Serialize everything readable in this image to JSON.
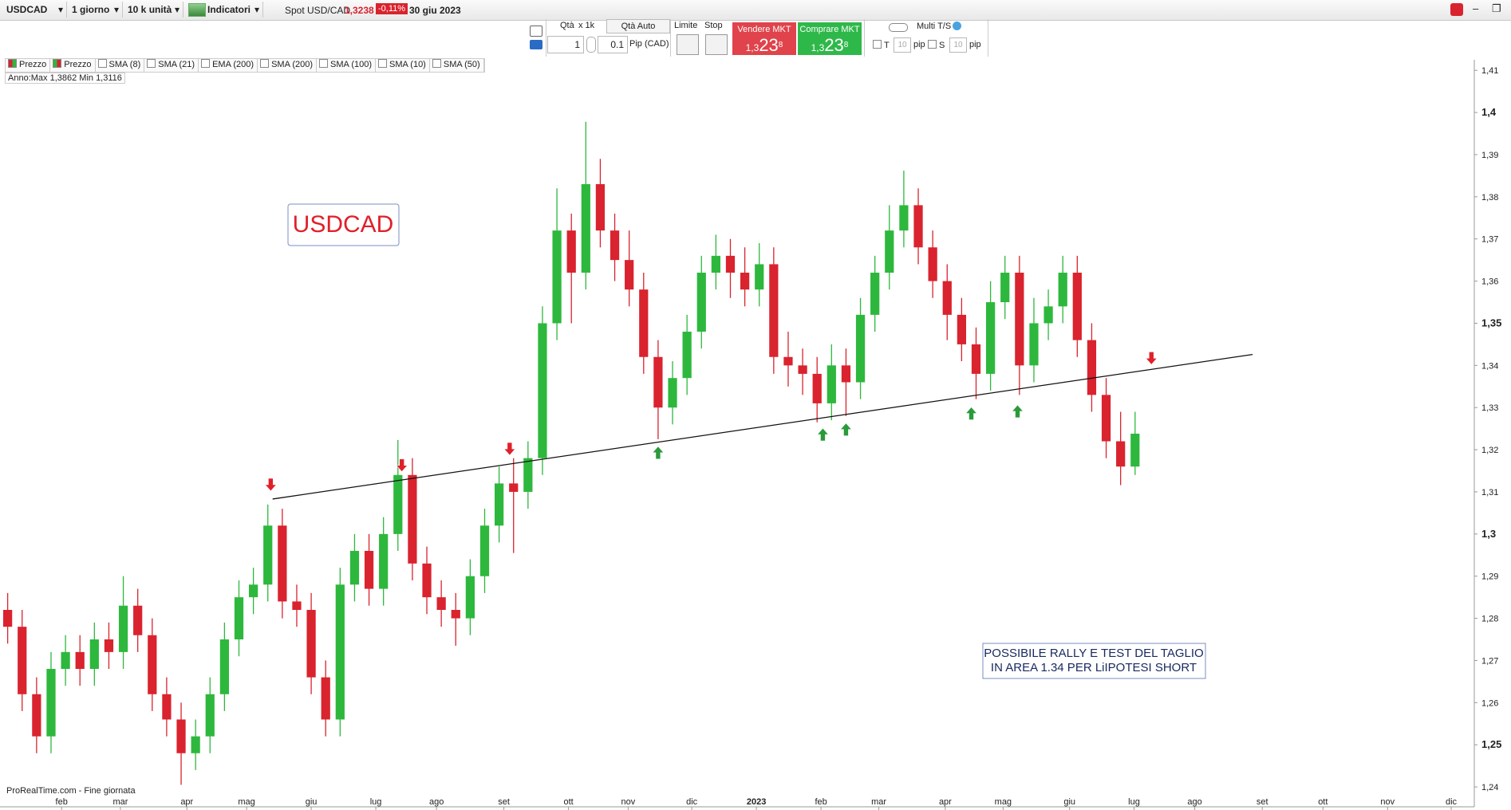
{
  "toolbar": {
    "symbol": "USDCAD",
    "period": "1 giorno",
    "units": "10 k unità",
    "indicators": "Indicatori",
    "instrument": "Spot USD/CAD",
    "price": "1,3238",
    "change": "-0,11%",
    "date": "30 giu 2023"
  },
  "order_panel": {
    "qty_label": "Qtà",
    "qty_mult": "x 1k",
    "qty_auto": "Qtà Auto",
    "qty": "1",
    "pip_value": "0.1",
    "pip_unit": "Pip (CAD)",
    "limit": "Limite",
    "stop": "Stop",
    "sell": {
      "label": "Vendere MKT",
      "prefix": "1,3",
      "big": "23",
      "frac": "8"
    },
    "buy": {
      "label": "Comprare MKT",
      "prefix": "1,3",
      "big": "23",
      "frac": "8"
    },
    "multi_ts": "Multi T/S",
    "t_label": "T",
    "t_value": "10",
    "t_unit": "pip",
    "s_label": "S",
    "s_value": "10",
    "s_unit": "pip"
  },
  "legend": [
    "Prezzo",
    "Prezzo",
    "SMA (8)",
    "SMA (21)",
    "EMA (200)",
    "SMA (200)",
    "SMA (100)",
    "SMA (10)",
    "SMA (50)"
  ],
  "chart_data": {
    "type": "candlestick",
    "info": "Anno:Max 1,3862 Min 1,3116",
    "source": "ProRealTime.com - Fine giornata",
    "annotations": [
      "USDCAD",
      "POSSIBILE RALLY E TEST DEL TAGLIO",
      "IN AREA 1.34 PER LiIPOTESI SHORT"
    ],
    "up_color": "#2db83d",
    "down_color": "#d9232e",
    "xlim": [
      -0.2,
      101.47
    ],
    "xticks": [
      {
        "value": 3.73,
        "label": "feb"
      },
      {
        "value": 7.8,
        "label": "mar"
      },
      {
        "value": 12.4,
        "label": "apr"
      },
      {
        "value": 16.53,
        "label": "mag"
      },
      {
        "value": 21.0,
        "label": "giu"
      },
      {
        "value": 25.47,
        "label": "lug"
      },
      {
        "value": 29.67,
        "label": "ago"
      },
      {
        "value": 34.33,
        "label": "set"
      },
      {
        "value": 38.8,
        "label": "ott"
      },
      {
        "value": 42.93,
        "label": "nov"
      },
      {
        "value": 47.33,
        "label": "dic"
      },
      {
        "value": 51.8,
        "label": "2023"
      },
      {
        "value": 56.27,
        "label": "feb"
      },
      {
        "value": 60.27,
        "label": "mar"
      },
      {
        "value": 64.87,
        "label": "apr"
      },
      {
        "value": 68.87,
        "label": "mag"
      },
      {
        "value": 73.47,
        "label": "giu"
      },
      {
        "value": 77.93,
        "label": "lug"
      },
      {
        "value": 82.13,
        "label": "ago"
      },
      {
        "value": 86.8,
        "label": "set"
      },
      {
        "value": 91.0,
        "label": "ott"
      },
      {
        "value": 95.47,
        "label": "nov"
      },
      {
        "value": 99.87,
        "label": "dic"
      }
    ],
    "ylim": [
      1.2385,
      1.4125
    ],
    "yticks": [
      {
        "value": 1.24,
        "label": "1,24"
      },
      {
        "value": 1.25,
        "label": "1,25"
      },
      {
        "value": 1.26,
        "label": "1,26"
      },
      {
        "value": 1.27,
        "label": "1,27"
      },
      {
        "value": 1.28,
        "label": "1,28"
      },
      {
        "value": 1.29,
        "label": "1,29"
      },
      {
        "value": 1.3,
        "label": "1,3"
      },
      {
        "value": 1.31,
        "label": "1,31"
      },
      {
        "value": 1.32,
        "label": "1,32"
      },
      {
        "value": 1.33,
        "label": "1,33"
      },
      {
        "value": 1.34,
        "label": "1,34"
      },
      {
        "value": 1.35,
        "label": "1,35"
      },
      {
        "value": 1.36,
        "label": "1,36"
      },
      {
        "value": 1.37,
        "label": "1,37"
      },
      {
        "value": 1.38,
        "label": "1,38"
      },
      {
        "value": 1.39,
        "label": "1,39"
      },
      {
        "value": 1.4,
        "label": "1,4"
      },
      {
        "value": 1.41,
        "label": "1,41"
      }
    ],
    "x": [
      0,
      1,
      2,
      3,
      4,
      5,
      6,
      7,
      8,
      9,
      10,
      11,
      12,
      13,
      14,
      15,
      16,
      17,
      18,
      19,
      20,
      21,
      22,
      23,
      24,
      25,
      26,
      27,
      28,
      29,
      30,
      31,
      32,
      33,
      34,
      35,
      36,
      37,
      38,
      39,
      40,
      41,
      42,
      43,
      44,
      45,
      46,
      47,
      48,
      49,
      50,
      51,
      52,
      53,
      54,
      55,
      56,
      57,
      58,
      59,
      60,
      61,
      62,
      63,
      64,
      65,
      66,
      67,
      68,
      69,
      70,
      71,
      72,
      73,
      74,
      75,
      76,
      77,
      78
    ],
    "open": [
      1.282,
      1.278,
      1.262,
      1.252,
      1.268,
      1.272,
      1.268,
      1.275,
      1.272,
      1.283,
      1.276,
      1.262,
      1.256,
      1.248,
      1.252,
      1.262,
      1.275,
      1.285,
      1.288,
      1.302,
      1.284,
      1.282,
      1.266,
      1.256,
      1.288,
      1.296,
      1.287,
      1.3,
      1.314,
      1.293,
      1.285,
      1.282,
      1.28,
      1.29,
      1.302,
      1.312,
      1.31,
      1.318,
      1.35,
      1.372,
      1.362,
      1.383,
      1.372,
      1.365,
      1.358,
      1.342,
      1.33,
      1.337,
      1.348,
      1.362,
      1.366,
      1.362,
      1.358,
      1.364,
      1.342,
      1.34,
      1.338,
      1.331,
      1.34,
      1.336,
      1.352,
      1.362,
      1.372,
      1.378,
      1.368,
      1.36,
      1.352,
      1.345,
      1.338,
      1.355,
      1.362,
      1.34,
      1.35,
      1.354,
      1.362,
      1.346,
      1.333,
      1.322,
      1.316
    ],
    "high": [
      1.286,
      1.282,
      1.266,
      1.272,
      1.276,
      1.276,
      1.279,
      1.279,
      1.29,
      1.287,
      1.28,
      1.266,
      1.26,
      1.256,
      1.266,
      1.279,
      1.289,
      1.292,
      1.307,
      1.306,
      1.288,
      1.286,
      1.27,
      1.292,
      1.3,
      1.3,
      1.304,
      1.3223,
      1.318,
      1.297,
      1.289,
      1.286,
      1.294,
      1.306,
      1.316,
      1.318,
      1.322,
      1.354,
      1.382,
      1.376,
      1.3978,
      1.389,
      1.376,
      1.372,
      1.362,
      1.346,
      1.341,
      1.352,
      1.366,
      1.371,
      1.37,
      1.368,
      1.369,
      1.368,
      1.348,
      1.344,
      1.342,
      1.345,
      1.344,
      1.356,
      1.366,
      1.378,
      1.3862,
      1.382,
      1.372,
      1.364,
      1.356,
      1.349,
      1.36,
      1.366,
      1.366,
      1.356,
      1.358,
      1.366,
      1.366,
      1.35,
      1.337,
      1.329,
      1.329
    ],
    "low": [
      1.274,
      1.258,
      1.248,
      1.248,
      1.264,
      1.264,
      1.264,
      1.268,
      1.268,
      1.272,
      1.258,
      1.252,
      1.2405,
      1.244,
      1.248,
      1.258,
      1.271,
      1.281,
      1.284,
      1.28,
      1.278,
      1.262,
      1.252,
      1.252,
      1.284,
      1.283,
      1.283,
      1.296,
      1.289,
      1.281,
      1.278,
      1.2735,
      1.276,
      1.286,
      1.298,
      1.2955,
      1.306,
      1.314,
      1.346,
      1.35,
      1.358,
      1.368,
      1.36,
      1.354,
      1.338,
      1.3225,
      1.326,
      1.333,
      1.344,
      1.358,
      1.356,
      1.354,
      1.354,
      1.338,
      1.335,
      1.333,
      1.3265,
      1.327,
      1.328,
      1.332,
      1.348,
      1.358,
      1.368,
      1.364,
      1.356,
      1.346,
      1.341,
      1.332,
      1.334,
      1.351,
      1.333,
      1.336,
      1.346,
      1.35,
      1.342,
      1.329,
      1.318,
      1.3116,
      1.314
    ],
    "close": [
      1.278,
      1.262,
      1.252,
      1.268,
      1.272,
      1.268,
      1.275,
      1.272,
      1.283,
      1.276,
      1.262,
      1.256,
      1.248,
      1.252,
      1.262,
      1.275,
      1.285,
      1.288,
      1.302,
      1.284,
      1.282,
      1.266,
      1.256,
      1.288,
      1.296,
      1.287,
      1.3,
      1.314,
      1.293,
      1.285,
      1.282,
      1.28,
      1.29,
      1.302,
      1.312,
      1.31,
      1.318,
      1.35,
      1.372,
      1.362,
      1.383,
      1.372,
      1.365,
      1.358,
      1.342,
      1.33,
      1.337,
      1.348,
      1.362,
      1.366,
      1.362,
      1.358,
      1.364,
      1.342,
      1.34,
      1.338,
      1.331,
      1.34,
      1.336,
      1.352,
      1.362,
      1.372,
      1.378,
      1.368,
      1.36,
      1.352,
      1.345,
      1.338,
      1.355,
      1.362,
      1.34,
      1.35,
      1.354,
      1.362,
      1.346,
      1.333,
      1.322,
      1.316,
      1.3238
    ],
    "trend_line": {
      "x": [
        18.33,
        86.13
      ],
      "y": [
        1.3083,
        1.3426
      ]
    },
    "sell_arrows": {
      "x": [
        18.2,
        27.27,
        34.73,
        79.13
      ],
      "y": [
        1.3117,
        1.3163,
        1.3202,
        1.3417
      ]
    },
    "buy_arrows": {
      "x": [
        45,
        56.4,
        58,
        66.67,
        69.87
      ],
      "y": [
        1.3193,
        1.3236,
        1.3248,
        1.3286,
        1.3291
      ]
    }
  }
}
